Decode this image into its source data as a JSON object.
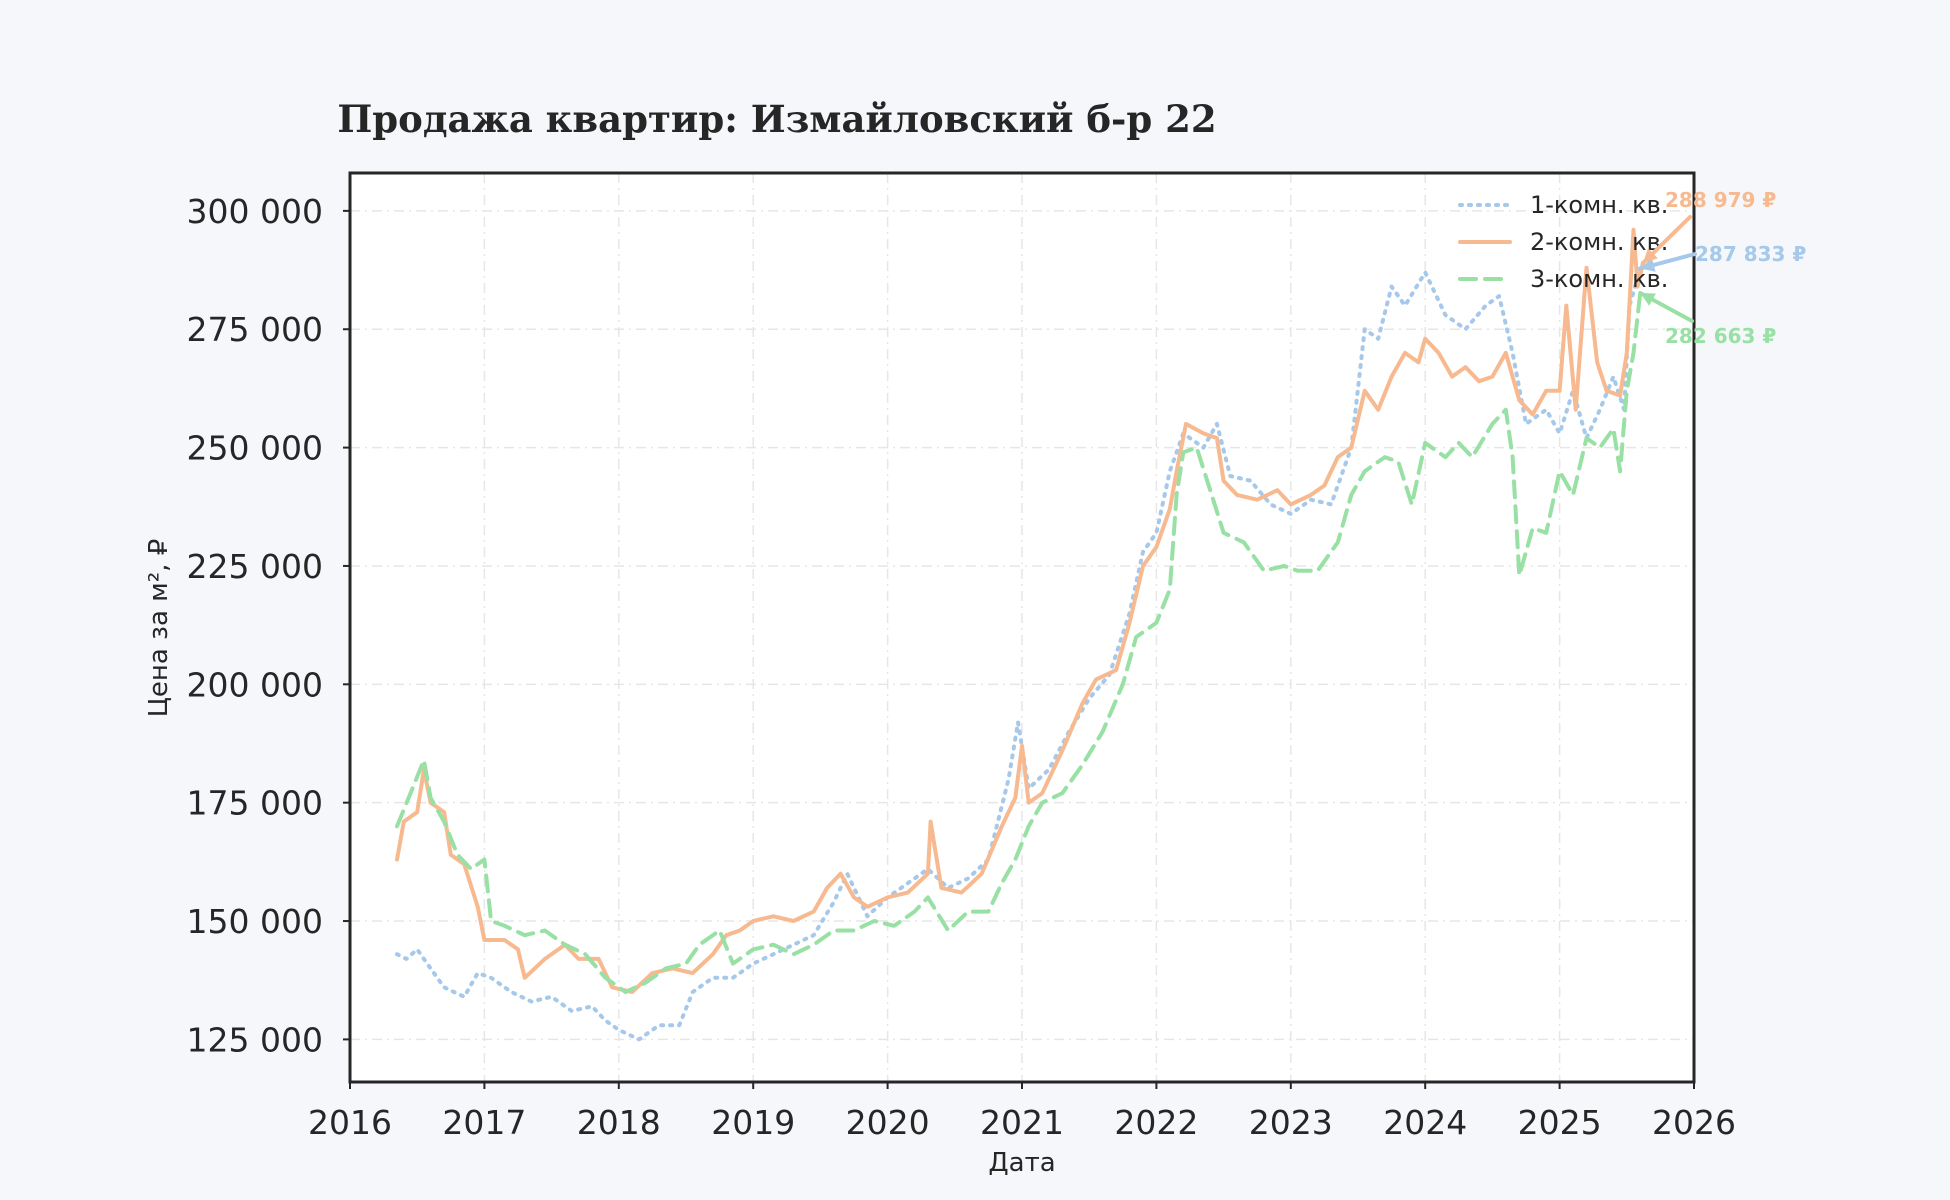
{
  "chart_data": {
    "type": "line",
    "title": "Продажа квартир: Измайловский б-р 22",
    "xlabel": "Дата",
    "ylabel": "Цена за м², ₽",
    "xlim": [
      2016,
      2026
    ],
    "ylim": [
      116000,
      308000
    ],
    "grid": true,
    "legend_position": "top-right",
    "x_ticks": [
      "2016",
      "2017",
      "2018",
      "2019",
      "2020",
      "2021",
      "2022",
      "2023",
      "2024",
      "2025",
      "2026"
    ],
    "y_ticks": [
      {
        "value": 125000,
        "label": "125 000"
      },
      {
        "value": 150000,
        "label": "150 000"
      },
      {
        "value": 175000,
        "label": "175 000"
      },
      {
        "value": 200000,
        "label": "200 000"
      },
      {
        "value": 225000,
        "label": "225 000"
      },
      {
        "value": 250000,
        "label": "250 000"
      },
      {
        "value": 275000,
        "label": "275 000"
      },
      {
        "value": 300000,
        "label": "300 000"
      }
    ],
    "series": [
      {
        "name": "1-комн. кв.",
        "color": "#a6c8ea",
        "style": "dotted",
        "last_label": "287 833 ₽",
        "last_value": 287833,
        "points": [
          [
            2016.35,
            143000
          ],
          [
            2016.42,
            142000
          ],
          [
            2016.5,
            144000
          ],
          [
            2016.6,
            140000
          ],
          [
            2016.7,
            136000
          ],
          [
            2016.85,
            134000
          ],
          [
            2016.95,
            139000
          ],
          [
            2017.05,
            138000
          ],
          [
            2017.2,
            135000
          ],
          [
            2017.35,
            133000
          ],
          [
            2017.5,
            134000
          ],
          [
            2017.65,
            131000
          ],
          [
            2017.8,
            132000
          ],
          [
            2017.9,
            129000
          ],
          [
            2018.0,
            127000
          ],
          [
            2018.15,
            125000
          ],
          [
            2018.3,
            128000
          ],
          [
            2018.45,
            128000
          ],
          [
            2018.55,
            135000
          ],
          [
            2018.7,
            138000
          ],
          [
            2018.85,
            138000
          ],
          [
            2019.0,
            141000
          ],
          [
            2019.15,
            143000
          ],
          [
            2019.3,
            145000
          ],
          [
            2019.45,
            147000
          ],
          [
            2019.6,
            154000
          ],
          [
            2019.7,
            160000
          ],
          [
            2019.85,
            151000
          ],
          [
            2020.0,
            155000
          ],
          [
            2020.15,
            158000
          ],
          [
            2020.3,
            161000
          ],
          [
            2020.45,
            157000
          ],
          [
            2020.6,
            159000
          ],
          [
            2020.75,
            163000
          ],
          [
            2020.9,
            180000
          ],
          [
            2020.97,
            192000
          ],
          [
            2021.05,
            178000
          ],
          [
            2021.2,
            182000
          ],
          [
            2021.35,
            190000
          ],
          [
            2021.5,
            197000
          ],
          [
            2021.65,
            202000
          ],
          [
            2021.8,
            215000
          ],
          [
            2021.9,
            228000
          ],
          [
            2022.0,
            232000
          ],
          [
            2022.1,
            245000
          ],
          [
            2022.2,
            253000
          ],
          [
            2022.35,
            250000
          ],
          [
            2022.45,
            255000
          ],
          [
            2022.55,
            244000
          ],
          [
            2022.7,
            243000
          ],
          [
            2022.85,
            238000
          ],
          [
            2023.0,
            236000
          ],
          [
            2023.15,
            239000
          ],
          [
            2023.3,
            238000
          ],
          [
            2023.45,
            250000
          ],
          [
            2023.55,
            275000
          ],
          [
            2023.65,
            273000
          ],
          [
            2023.75,
            284000
          ],
          [
            2023.85,
            280000
          ],
          [
            2024.0,
            287000
          ],
          [
            2024.15,
            278000
          ],
          [
            2024.3,
            275000
          ],
          [
            2024.45,
            280000
          ],
          [
            2024.55,
            282000
          ],
          [
            2024.65,
            270000
          ],
          [
            2024.75,
            255000
          ],
          [
            2024.9,
            258000
          ],
          [
            2025.0,
            253000
          ],
          [
            2025.1,
            262000
          ],
          [
            2025.2,
            252000
          ],
          [
            2025.3,
            258000
          ],
          [
            2025.4,
            265000
          ],
          [
            2025.48,
            258000
          ],
          [
            2025.52,
            280000
          ],
          [
            2025.6,
            287833
          ]
        ]
      },
      {
        "name": "2-комн. кв.",
        "color": "#f7b98f",
        "style": "solid",
        "last_label": "288 979 ₽",
        "last_value": 288979,
        "points": [
          [
            2016.35,
            163000
          ],
          [
            2016.4,
            171000
          ],
          [
            2016.5,
            173000
          ],
          [
            2016.55,
            182000
          ],
          [
            2016.6,
            175000
          ],
          [
            2016.7,
            173000
          ],
          [
            2016.75,
            164000
          ],
          [
            2016.85,
            162000
          ],
          [
            2016.95,
            153000
          ],
          [
            2017.0,
            146000
          ],
          [
            2017.15,
            146000
          ],
          [
            2017.25,
            144000
          ],
          [
            2017.3,
            138000
          ],
          [
            2017.45,
            142000
          ],
          [
            2017.6,
            145000
          ],
          [
            2017.7,
            142000
          ],
          [
            2017.85,
            142000
          ],
          [
            2017.95,
            136000
          ],
          [
            2018.1,
            135000
          ],
          [
            2018.25,
            139000
          ],
          [
            2018.4,
            140000
          ],
          [
            2018.55,
            139000
          ],
          [
            2018.7,
            143000
          ],
          [
            2018.8,
            147000
          ],
          [
            2018.9,
            148000
          ],
          [
            2019.0,
            150000
          ],
          [
            2019.15,
            151000
          ],
          [
            2019.3,
            150000
          ],
          [
            2019.45,
            152000
          ],
          [
            2019.55,
            157000
          ],
          [
            2019.65,
            160000
          ],
          [
            2019.75,
            155000
          ],
          [
            2019.85,
            153000
          ],
          [
            2020.0,
            155000
          ],
          [
            2020.15,
            156000
          ],
          [
            2020.3,
            160000
          ],
          [
            2020.32,
            171000
          ],
          [
            2020.4,
            157000
          ],
          [
            2020.55,
            156000
          ],
          [
            2020.7,
            160000
          ],
          [
            2020.85,
            170000
          ],
          [
            2020.95,
            176000
          ],
          [
            2021.0,
            187000
          ],
          [
            2021.05,
            175000
          ],
          [
            2021.15,
            177000
          ],
          [
            2021.3,
            186000
          ],
          [
            2021.45,
            196000
          ],
          [
            2021.55,
            201000
          ],
          [
            2021.7,
            203000
          ],
          [
            2021.8,
            213000
          ],
          [
            2021.9,
            225000
          ],
          [
            2022.0,
            229000
          ],
          [
            2022.1,
            237000
          ],
          [
            2022.15,
            245000
          ],
          [
            2022.22,
            255000
          ],
          [
            2022.35,
            253000
          ],
          [
            2022.45,
            252000
          ],
          [
            2022.5,
            243000
          ],
          [
            2022.6,
            240000
          ],
          [
            2022.75,
            239000
          ],
          [
            2022.9,
            241000
          ],
          [
            2023.0,
            238000
          ],
          [
            2023.15,
            240000
          ],
          [
            2023.25,
            242000
          ],
          [
            2023.35,
            248000
          ],
          [
            2023.45,
            250000
          ],
          [
            2023.55,
            262000
          ],
          [
            2023.65,
            258000
          ],
          [
            2023.75,
            265000
          ],
          [
            2023.85,
            270000
          ],
          [
            2023.95,
            268000
          ],
          [
            2024.0,
            273000
          ],
          [
            2024.1,
            270000
          ],
          [
            2024.2,
            265000
          ],
          [
            2024.3,
            267000
          ],
          [
            2024.4,
            264000
          ],
          [
            2024.5,
            265000
          ],
          [
            2024.6,
            270000
          ],
          [
            2024.7,
            260000
          ],
          [
            2024.8,
            257000
          ],
          [
            2024.9,
            262000
          ],
          [
            2025.0,
            262000
          ],
          [
            2025.05,
            280000
          ],
          [
            2025.12,
            258000
          ],
          [
            2025.2,
            288000
          ],
          [
            2025.28,
            268000
          ],
          [
            2025.35,
            262000
          ],
          [
            2025.45,
            261000
          ],
          [
            2025.5,
            270000
          ],
          [
            2025.55,
            296000
          ],
          [
            2025.58,
            284000
          ],
          [
            2025.62,
            288979
          ]
        ]
      },
      {
        "name": "3-комн. кв.",
        "color": "#98e0a4",
        "style": "dashed",
        "last_label": "282 663 ₽",
        "last_value": 282663,
        "points": [
          [
            2016.35,
            170000
          ],
          [
            2016.45,
            177000
          ],
          [
            2016.55,
            184000
          ],
          [
            2016.6,
            176000
          ],
          [
            2016.7,
            171000
          ],
          [
            2016.8,
            164000
          ],
          [
            2016.9,
            161000
          ],
          [
            2017.0,
            163000
          ],
          [
            2017.05,
            150000
          ],
          [
            2017.15,
            149000
          ],
          [
            2017.3,
            147000
          ],
          [
            2017.45,
            148000
          ],
          [
            2017.6,
            145000
          ],
          [
            2017.75,
            143000
          ],
          [
            2017.9,
            138000
          ],
          [
            2018.05,
            135000
          ],
          [
            2018.2,
            137000
          ],
          [
            2018.35,
            140000
          ],
          [
            2018.5,
            141000
          ],
          [
            2018.6,
            145000
          ],
          [
            2018.75,
            148000
          ],
          [
            2018.85,
            141000
          ],
          [
            2019.0,
            144000
          ],
          [
            2019.15,
            145000
          ],
          [
            2019.3,
            143000
          ],
          [
            2019.45,
            145000
          ],
          [
            2019.6,
            148000
          ],
          [
            2019.75,
            148000
          ],
          [
            2019.9,
            150000
          ],
          [
            2020.05,
            149000
          ],
          [
            2020.2,
            152000
          ],
          [
            2020.3,
            155000
          ],
          [
            2020.45,
            148000
          ],
          [
            2020.6,
            152000
          ],
          [
            2020.75,
            152000
          ],
          [
            2020.85,
            158000
          ],
          [
            2020.95,
            163000
          ],
          [
            2021.05,
            170000
          ],
          [
            2021.15,
            175000
          ],
          [
            2021.3,
            177000
          ],
          [
            2021.45,
            183000
          ],
          [
            2021.6,
            190000
          ],
          [
            2021.75,
            200000
          ],
          [
            2021.85,
            210000
          ],
          [
            2022.0,
            213000
          ],
          [
            2022.1,
            220000
          ],
          [
            2022.15,
            240000
          ],
          [
            2022.2,
            249000
          ],
          [
            2022.3,
            250000
          ],
          [
            2022.4,
            241000
          ],
          [
            2022.5,
            232000
          ],
          [
            2022.65,
            230000
          ],
          [
            2022.8,
            224000
          ],
          [
            2022.95,
            225000
          ],
          [
            2023.05,
            224000
          ],
          [
            2023.2,
            224000
          ],
          [
            2023.35,
            230000
          ],
          [
            2023.45,
            240000
          ],
          [
            2023.55,
            245000
          ],
          [
            2023.7,
            248000
          ],
          [
            2023.8,
            247000
          ],
          [
            2023.9,
            238000
          ],
          [
            2024.0,
            251000
          ],
          [
            2024.15,
            248000
          ],
          [
            2024.25,
            251000
          ],
          [
            2024.35,
            248000
          ],
          [
            2024.5,
            255000
          ],
          [
            2024.6,
            258000
          ],
          [
            2024.65,
            248000
          ],
          [
            2024.7,
            223000
          ],
          [
            2024.8,
            233000
          ],
          [
            2024.9,
            232000
          ],
          [
            2025.0,
            245000
          ],
          [
            2025.1,
            240000
          ],
          [
            2025.2,
            252000
          ],
          [
            2025.3,
            250000
          ],
          [
            2025.4,
            254000
          ],
          [
            2025.45,
            245000
          ],
          [
            2025.5,
            262000
          ],
          [
            2025.55,
            270000
          ],
          [
            2025.6,
            282663
          ]
        ]
      }
    ]
  }
}
